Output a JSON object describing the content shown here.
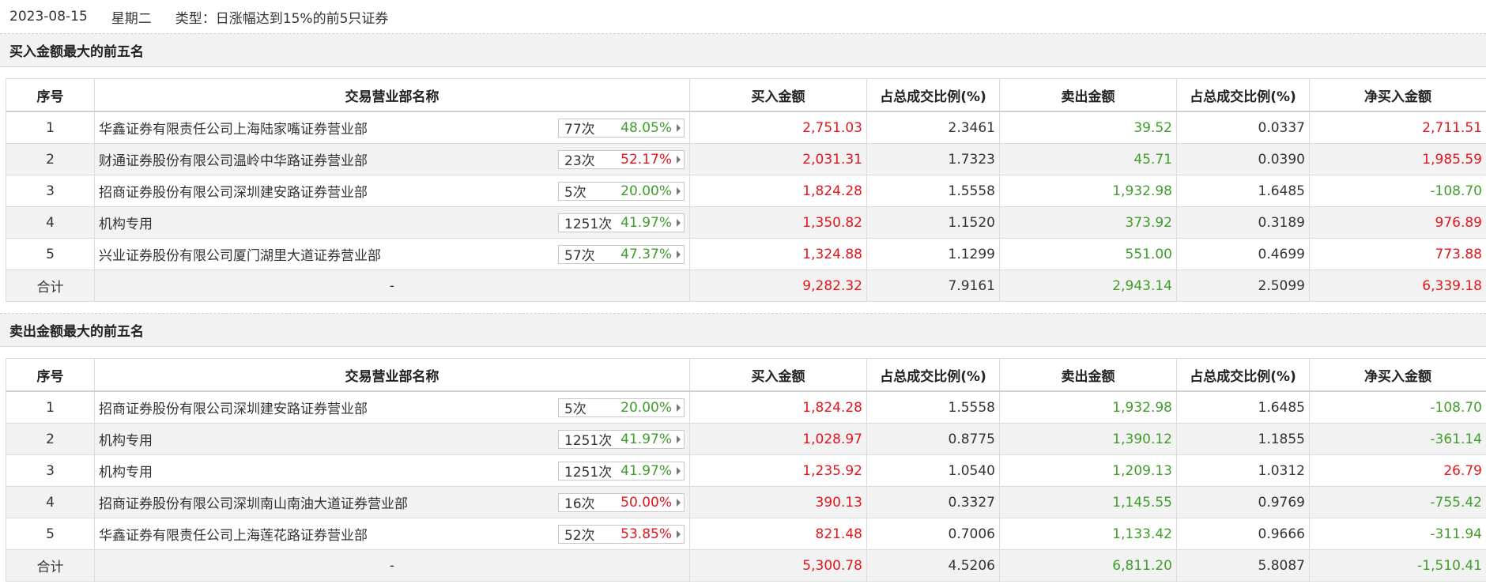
{
  "header": {
    "date": "2023-08-15",
    "weekday": "星期二",
    "type": "类型：日涨幅达到15%的前5只证券"
  },
  "columns": [
    "序号",
    "交易营业部名称",
    "买入金额",
    "占总成交比例(%)",
    "卖出金额",
    "占总成交比例(%)",
    "净买入金额"
  ],
  "buy_section": {
    "title": "买入金额最大的前五名",
    "rows": [
      {
        "no": "1",
        "name": "华鑫证券有限责任公司上海陆家嘴证券营业部",
        "times": "77次",
        "rate": "48.05%",
        "rate_color": "green",
        "buy": "2,751.03",
        "buy_pct": "2.3461",
        "sell": "39.52",
        "sell_pct": "0.0337",
        "net": "2,711.51",
        "net_color": "red"
      },
      {
        "no": "2",
        "name": "财通证券股份有限公司温岭中华路证券营业部",
        "times": "23次",
        "rate": "52.17%",
        "rate_color": "red",
        "buy": "2,031.31",
        "buy_pct": "1.7323",
        "sell": "45.71",
        "sell_pct": "0.0390",
        "net": "1,985.59",
        "net_color": "red"
      },
      {
        "no": "3",
        "name": "招商证券股份有限公司深圳建安路证券营业部",
        "times": "5次",
        "rate": "20.00%",
        "rate_color": "green",
        "buy": "1,824.28",
        "buy_pct": "1.5558",
        "sell": "1,932.98",
        "sell_pct": "1.6485",
        "net": "-108.70",
        "net_color": "green"
      },
      {
        "no": "4",
        "name": "机构专用",
        "times": "1251次",
        "rate": "41.97%",
        "rate_color": "green",
        "buy": "1,350.82",
        "buy_pct": "1.1520",
        "sell": "373.92",
        "sell_pct": "0.3189",
        "net": "976.89",
        "net_color": "red"
      },
      {
        "no": "5",
        "name": "兴业证券股份有限公司厦门湖里大道证券营业部",
        "times": "57次",
        "rate": "47.37%",
        "rate_color": "green",
        "buy": "1,324.88",
        "buy_pct": "1.1299",
        "sell": "551.00",
        "sell_pct": "0.4699",
        "net": "773.88",
        "net_color": "red"
      }
    ],
    "total": {
      "label": "合计",
      "name": "-",
      "buy": "9,282.32",
      "buy_pct": "7.9161",
      "sell": "2,943.14",
      "sell_pct": "2.5099",
      "net": "6,339.18",
      "net_color": "red"
    }
  },
  "sell_section": {
    "title": "卖出金额最大的前五名",
    "rows": [
      {
        "no": "1",
        "name": "招商证券股份有限公司深圳建安路证券营业部",
        "times": "5次",
        "rate": "20.00%",
        "rate_color": "green",
        "buy": "1,824.28",
        "buy_pct": "1.5558",
        "sell": "1,932.98",
        "sell_pct": "1.6485",
        "net": "-108.70",
        "net_color": "green"
      },
      {
        "no": "2",
        "name": "机构专用",
        "times": "1251次",
        "rate": "41.97%",
        "rate_color": "green",
        "buy": "1,028.97",
        "buy_pct": "0.8775",
        "sell": "1,390.12",
        "sell_pct": "1.1855",
        "net": "-361.14",
        "net_color": "green"
      },
      {
        "no": "3",
        "name": "机构专用",
        "times": "1251次",
        "rate": "41.97%",
        "rate_color": "green",
        "buy": "1,235.92",
        "buy_pct": "1.0540",
        "sell": "1,209.13",
        "sell_pct": "1.0312",
        "net": "26.79",
        "net_color": "red"
      },
      {
        "no": "4",
        "name": "招商证券股份有限公司深圳南山南油大道证券营业部",
        "times": "16次",
        "rate": "50.00%",
        "rate_color": "red",
        "buy": "390.13",
        "buy_pct": "0.3327",
        "sell": "1,145.55",
        "sell_pct": "0.9769",
        "net": "-755.42",
        "net_color": "green"
      },
      {
        "no": "5",
        "name": "华鑫证券有限责任公司上海莲花路证券营业部",
        "times": "52次",
        "rate": "53.85%",
        "rate_color": "red",
        "buy": "821.48",
        "buy_pct": "0.7006",
        "sell": "1,133.42",
        "sell_pct": "0.9666",
        "net": "-311.94",
        "net_color": "green"
      }
    ],
    "total": {
      "label": "合计",
      "name": "-",
      "buy": "5,300.78",
      "buy_pct": "4.5206",
      "sell": "6,811.20",
      "sell_pct": "5.8087",
      "net": "-1,510.41",
      "net_color": "green"
    }
  },
  "colors": {
    "up": "#e4151b",
    "down": "#3f9d2a"
  }
}
